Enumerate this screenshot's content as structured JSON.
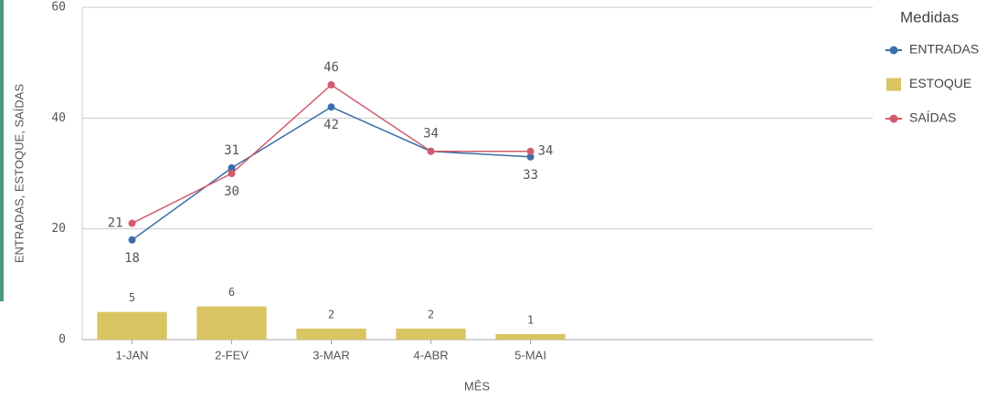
{
  "chart_data": {
    "type": "combo",
    "x_label": "MÊS",
    "y_label": "ENTRADAS, ESTOQUE, SAÍDAS",
    "legend_title": "Medidas",
    "legend": "right",
    "grid": true,
    "categories": [
      "1-JAN",
      "2-FEV",
      "3-MAR",
      "4-ABR",
      "5-MAI",
      null,
      null,
      null
    ],
    "series": [
      {
        "name": "ENTRADAS",
        "type": "line",
        "color": "#3a6ea8",
        "values": [
          18,
          31,
          42,
          34,
          33,
          null,
          null,
          null
        ]
      },
      {
        "name": "ESTOQUE",
        "type": "bar",
        "color": "#d9c462",
        "values": [
          5,
          6,
          2,
          2,
          1,
          null,
          null,
          null
        ]
      },
      {
        "name": "SAÍDAS",
        "type": "line",
        "color": "#d25b6d",
        "values": [
          21,
          30,
          46,
          34,
          34,
          null,
          null,
          null
        ]
      }
    ],
    "ylim": [
      0,
      60
    ],
    "yticks": [
      0,
      20,
      40,
      60
    ]
  }
}
